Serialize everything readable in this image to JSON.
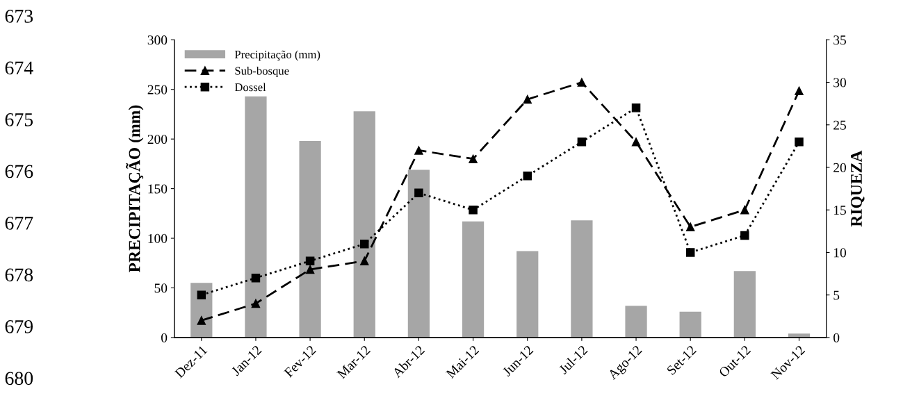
{
  "chart_data": {
    "type": "bar",
    "ylabel": "PRECIPITAÇÃO (mm)",
    "y2label": "RIQUEZA",
    "categories": [
      "Dez-11",
      "Jan-12",
      "Fev-12",
      "Mar-12",
      "Abr-12",
      "Mai-12",
      "Jun-12",
      "Jul-12",
      "Ago-12",
      "Set-12",
      "Out-12",
      "Nov-12"
    ],
    "series": [
      {
        "name": "Precipitação (mm)",
        "color": "#a6a6a6",
        "values": [
          55,
          243,
          198,
          228,
          169,
          117,
          87,
          118,
          32,
          26,
          67,
          4
        ]
      },
      {
        "name": "Sub-bosque",
        "type": "line",
        "axis": "y2",
        "color": "#000000",
        "marker": "triangle",
        "line_style": "dashed",
        "values": [
          2,
          4,
          8,
          9,
          22,
          21,
          28,
          30,
          23,
          13,
          15,
          29
        ]
      },
      {
        "name": "Dossel",
        "type": "line",
        "axis": "y2",
        "color": "#000000",
        "marker": "square",
        "line_style": "dotted",
        "values": [
          5,
          7,
          9,
          11,
          17,
          15,
          19,
          23,
          27,
          10,
          12,
          23
        ]
      }
    ],
    "ylim": [
      0,
      300
    ],
    "yticks": [
      0,
      50,
      100,
      150,
      200,
      250,
      300
    ],
    "y2lim": [
      0,
      35
    ],
    "y2ticks": [
      0,
      5,
      10,
      15,
      20,
      25,
      30,
      35
    ],
    "legend": "top left",
    "grid": false,
    "annotations": [
      "673",
      "674",
      "675",
      "676",
      "677",
      "678",
      "679",
      "680"
    ]
  }
}
